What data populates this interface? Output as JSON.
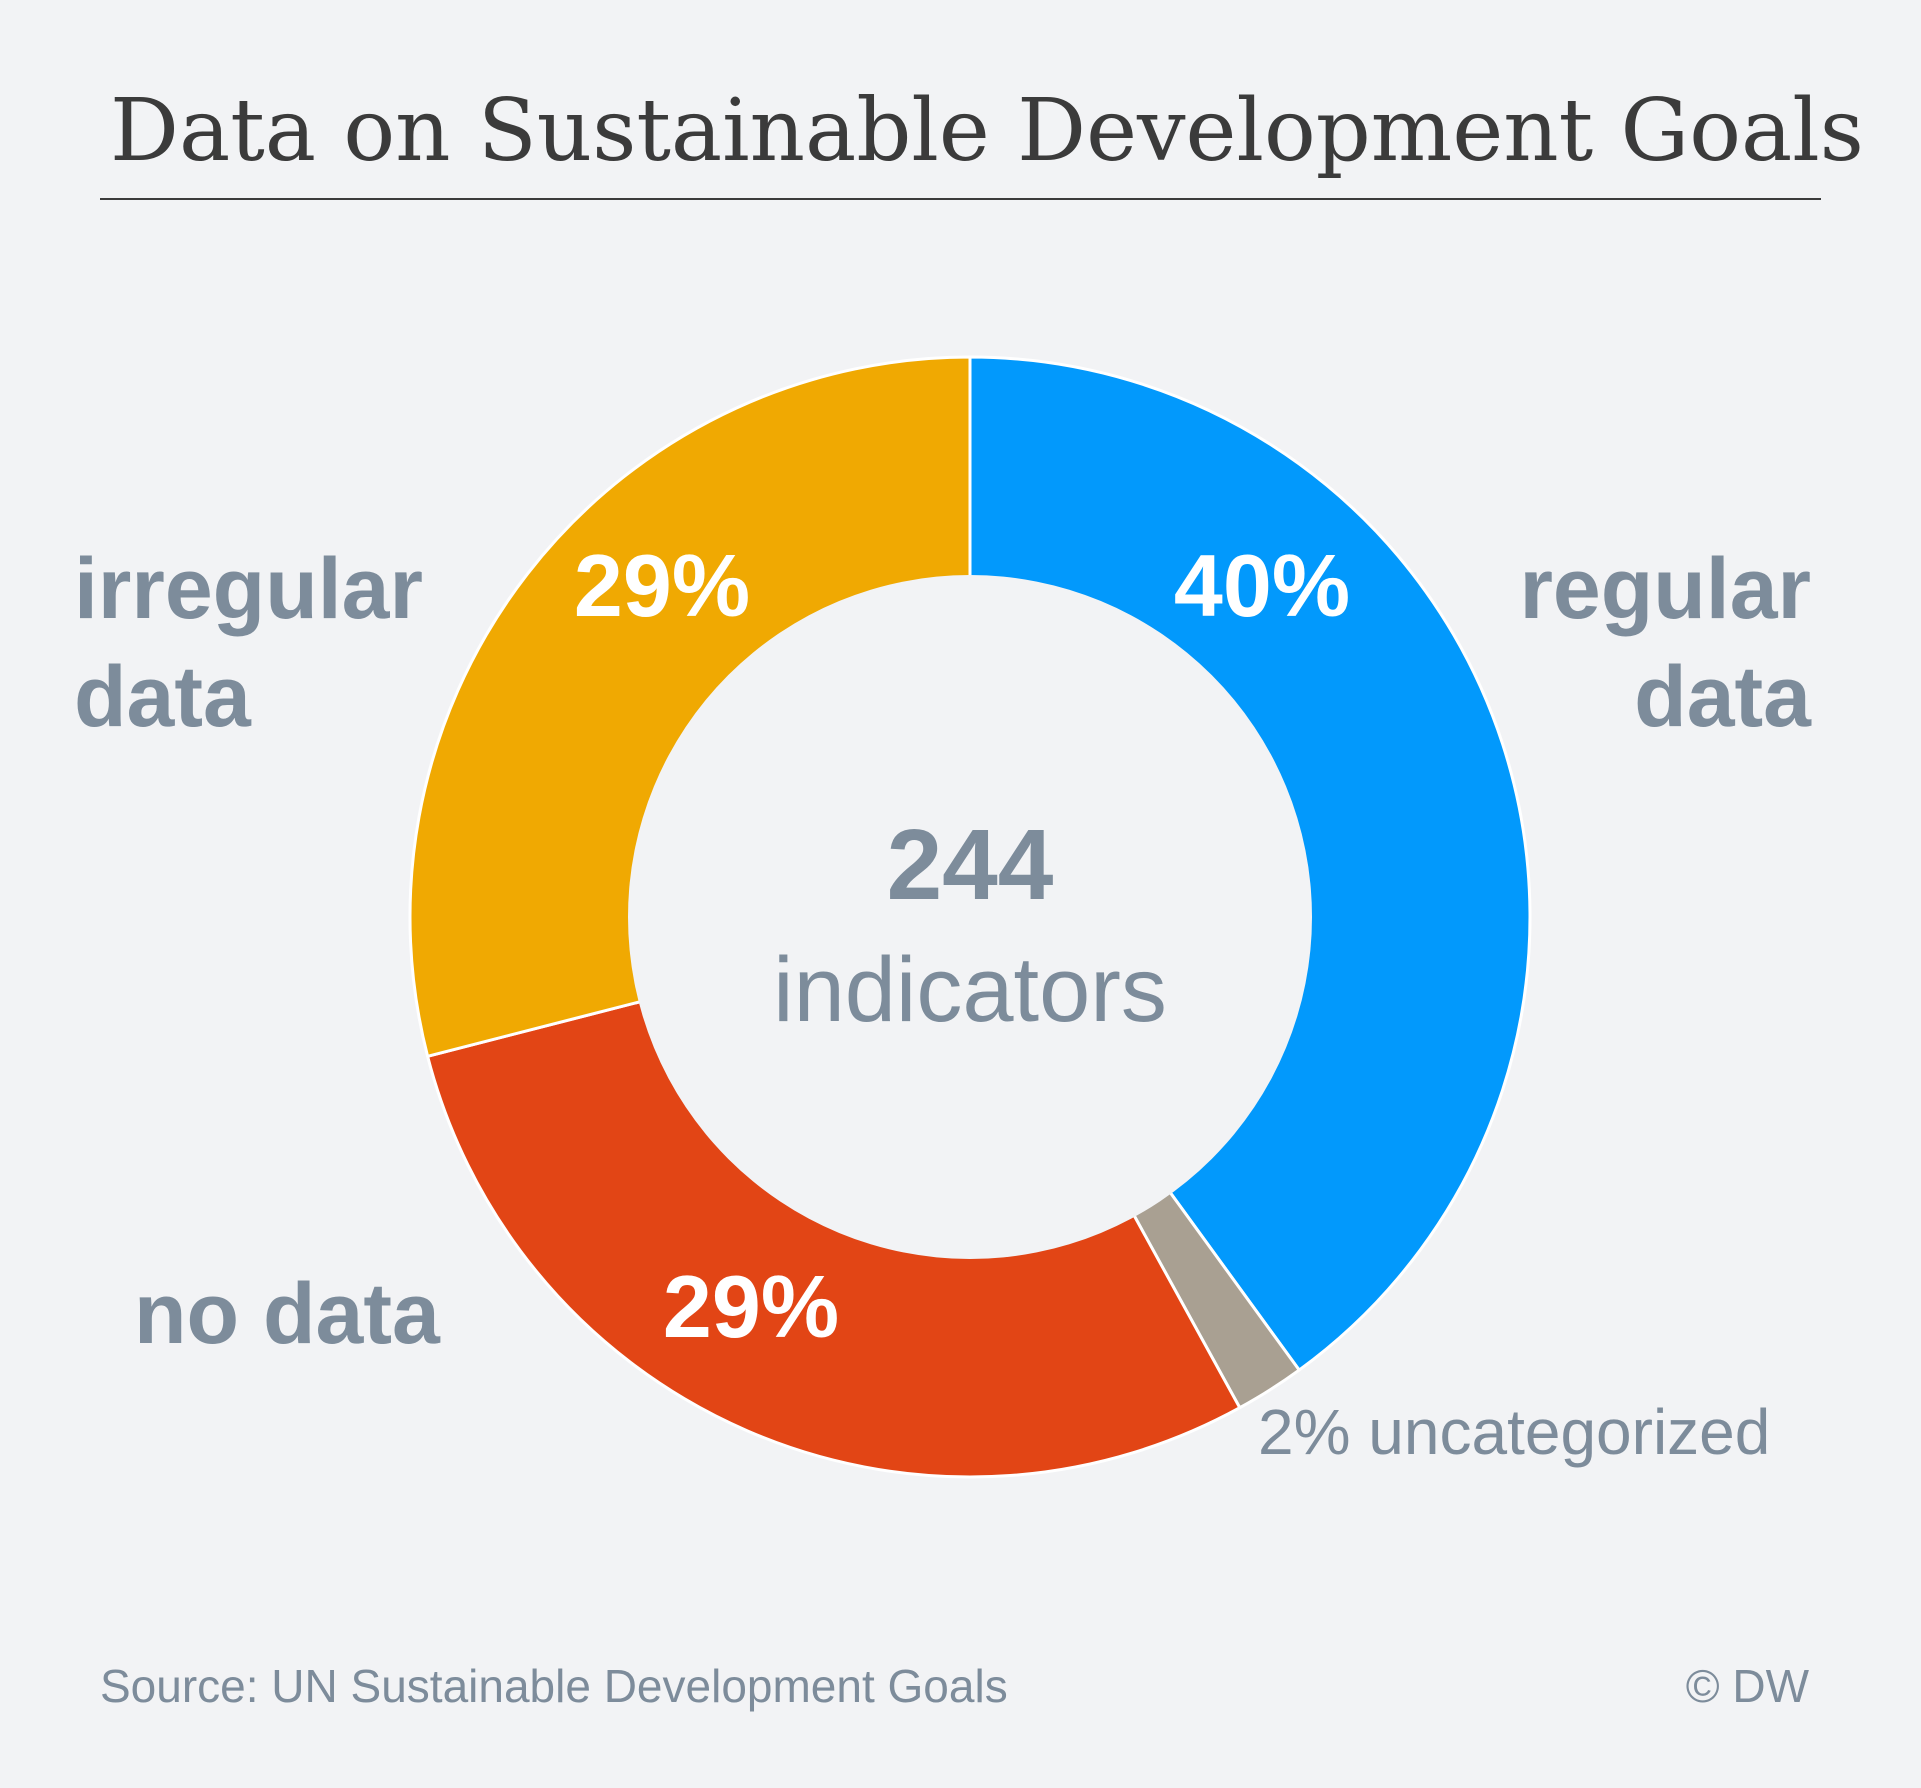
{
  "chart_data": {
    "type": "pie",
    "title": "Data on Sustainable Development Goals",
    "center": {
      "value": "244",
      "unit": "indicators"
    },
    "slices": [
      {
        "label": "regular data",
        "value": 40,
        "value_label": "40%",
        "color": "#0299fc"
      },
      {
        "label": "uncategorized",
        "value": 2,
        "value_label": "2% uncategorized",
        "color": "#a9a092"
      },
      {
        "label": "no data",
        "value": 29,
        "value_label": "29%",
        "color": "#e24515"
      },
      {
        "label": "irregular data",
        "value": 29,
        "value_label": "29%",
        "color": "#f0a902"
      }
    ],
    "legend": "none"
  },
  "labels": {
    "irregular": [
      "irregular",
      "data"
    ],
    "regular": [
      "regular",
      "data"
    ],
    "no_data": "no data"
  },
  "footer": {
    "source": "Source: UN Sustainable Development Goals",
    "credit": "© DW"
  }
}
